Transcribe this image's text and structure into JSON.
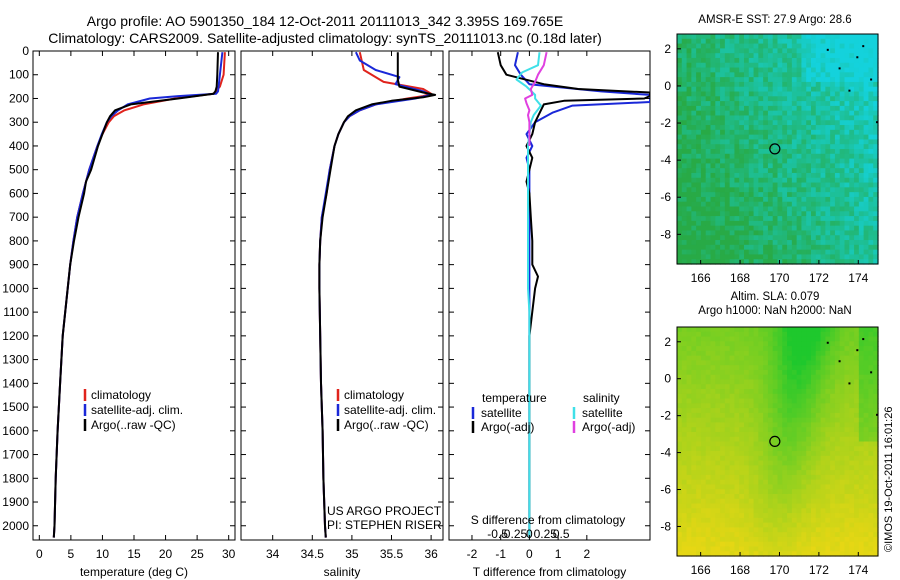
{
  "header": {
    "line1": "Argo profile: AO 5901350_184 12-Oct-2011 20111013_342 3.395S 169.765E",
    "line2": "Climatology: CARS2009. Satellite-adjusted climatology: synTS_20111013.nc (0.18d later)"
  },
  "colors": {
    "climatology": "#e0231c",
    "satellite": "#1a28d8",
    "argo": "#000000",
    "sal_satellite": "#3fe0e8",
    "sal_argo": "#e040e0"
  },
  "chart_data": [
    {
      "type": "line",
      "panel": "temperature",
      "xlabel": "temperature (deg C)",
      "ylabel": "",
      "xlim": [
        -1,
        31
      ],
      "ylim": [
        2060,
        0
      ],
      "xticks": [
        0,
        5,
        10,
        15,
        20,
        25,
        30
      ],
      "yticks": [
        0,
        100,
        200,
        300,
        400,
        500,
        600,
        700,
        800,
        900,
        1000,
        1100,
        1200,
        1300,
        1400,
        1500,
        1600,
        1700,
        1800,
        1900,
        2000
      ],
      "legend": [
        "climatology",
        "satellite-adj. clim.",
        "Argo(..raw -QC)"
      ],
      "series": [
        {
          "name": "climatology",
          "color": "#e0231c",
          "depth": [
            5,
            100,
            150,
            180,
            200,
            225,
            250,
            275,
            300,
            350,
            400,
            500,
            600,
            700,
            800,
            900,
            1000,
            1200,
            1400,
            1600,
            1800,
            2000,
            2050
          ],
          "values": [
            29.4,
            29.2,
            28.6,
            27.6,
            21.5,
            16.5,
            13.5,
            11.8,
            11.0,
            10.0,
            9.2,
            7.9,
            6.9,
            6.0,
            5.4,
            4.9,
            4.5,
            3.7,
            3.3,
            2.9,
            2.6,
            2.4,
            2.3
          ]
        },
        {
          "name": "satellite-adj. clim.",
          "color": "#1a28d8",
          "depth": [
            5,
            100,
            150,
            170,
            180,
            190,
            200,
            225,
            250,
            275,
            300,
            350,
            400,
            500,
            600,
            700,
            800,
            900,
            1000,
            1200,
            1400,
            1600,
            1800,
            2000,
            2050
          ],
          "values": [
            29.0,
            28.6,
            28.4,
            28.3,
            28.0,
            22.0,
            17.5,
            14.0,
            12.5,
            11.4,
            10.7,
            9.9,
            9.2,
            7.9,
            6.9,
            6.0,
            5.4,
            4.9,
            4.5,
            3.7,
            3.3,
            2.9,
            2.6,
            2.4,
            2.3
          ]
        },
        {
          "name": "Argo(..raw -QC)",
          "color": "#000000",
          "depth": [
            5,
            100,
            150,
            170,
            180,
            200,
            225,
            250,
            275,
            300,
            350,
            400,
            500,
            550,
            600,
            700,
            800,
            900,
            1000,
            1200,
            1400,
            1600,
            1800,
            2000,
            2050
          ],
          "values": [
            28.3,
            28.2,
            28.1,
            27.9,
            27.6,
            22.0,
            14.5,
            12.0,
            11.2,
            10.7,
            10.0,
            9.3,
            8.2,
            7.4,
            7.1,
            6.2,
            5.5,
            4.9,
            4.5,
            3.7,
            3.3,
            2.9,
            2.6,
            2.4,
            2.3
          ]
        }
      ]
    },
    {
      "type": "line",
      "panel": "salinity",
      "xlabel": "salinity",
      "ylabel": "",
      "xlim": [
        33.6,
        36.15
      ],
      "ylim": [
        2060,
        0
      ],
      "xticks": [
        34,
        34.5,
        35,
        35.5,
        36
      ],
      "legend": [
        "climatology",
        "satellite-adj. clim.",
        "Argo(..raw -QC)"
      ],
      "annotations": [
        "US ARGO PROJECT",
        "PI: STEPHEN RISER"
      ],
      "series": [
        {
          "name": "climatology",
          "color": "#e0231c",
          "depth": [
            5,
            80,
            130,
            160,
            180,
            190,
            200,
            225,
            250,
            275,
            300,
            350,
            400,
            500,
            600,
            700,
            800,
            900,
            1000,
            1200,
            1400,
            1600,
            1800,
            2000,
            2050
          ],
          "values": [
            35.1,
            35.15,
            35.4,
            35.9,
            36.0,
            35.9,
            35.7,
            35.3,
            35.1,
            34.97,
            34.9,
            34.83,
            34.78,
            34.72,
            34.68,
            34.62,
            34.6,
            34.59,
            34.59,
            34.6,
            34.61,
            34.63,
            34.64,
            34.66,
            34.67
          ]
        },
        {
          "name": "satellite-adj. clim.",
          "color": "#1a28d8",
          "depth": [
            5,
            40,
            80,
            110,
            140,
            170,
            185,
            200,
            225,
            250,
            275,
            300,
            350,
            400,
            500,
            600,
            700,
            800,
            900,
            1000,
            1200,
            1400,
            1600,
            1800,
            2000,
            2050
          ],
          "values": [
            35.05,
            35.1,
            35.3,
            35.6,
            35.55,
            35.9,
            36.0,
            35.8,
            35.3,
            35.1,
            34.97,
            34.9,
            34.83,
            34.78,
            34.72,
            34.67,
            34.62,
            34.6,
            34.59,
            34.59,
            34.6,
            34.61,
            34.63,
            34.64,
            34.66,
            34.67
          ]
        },
        {
          "name": "Argo(..raw -QC)",
          "color": "#000000",
          "depth": [
            5,
            60,
            120,
            150,
            175,
            185,
            195,
            210,
            225,
            250,
            275,
            300,
            350,
            400,
            500,
            600,
            700,
            800,
            900,
            1000,
            1200,
            1400,
            1600,
            1800,
            2000,
            2050
          ],
          "values": [
            35.58,
            35.58,
            35.58,
            35.6,
            35.9,
            36.05,
            35.9,
            35.5,
            35.25,
            35.05,
            34.95,
            34.9,
            34.83,
            34.78,
            34.73,
            34.68,
            34.63,
            34.6,
            34.59,
            34.59,
            34.6,
            34.61,
            34.63,
            34.64,
            34.66,
            34.67
          ]
        }
      ]
    },
    {
      "type": "line",
      "panel": "difference",
      "xlabel": "T difference from climatology",
      "x2label": "S difference from climatology",
      "xlim": [
        -2.8,
        4.2
      ],
      "ylim": [
        2060,
        0
      ],
      "xticks": [
        -2,
        -1,
        0,
        1,
        2
      ],
      "x2ticks_labels": [
        "-0.5",
        "-0.25",
        "0",
        "0.25",
        "0.5"
      ],
      "x2ticks": [
        -0.6,
        -0.3,
        0,
        0.3,
        0.6
      ],
      "legend_headers": [
        "temperature",
        "salinity"
      ],
      "legend": [
        "satellite",
        "Argo(-adj)",
        "satellite",
        "Argo(-adj)"
      ],
      "series": [
        {
          "name": "temperature satellite",
          "color": "#1a28d8",
          "depth": [
            5,
            60,
            100,
            140,
            170,
            185,
            200,
            215,
            230,
            260,
            300,
            350,
            400,
            450,
            500,
            600,
            700,
            800,
            900,
            1000,
            1200,
            1400,
            1600,
            1800,
            2000,
            2050
          ],
          "values": [
            -0.4,
            -0.5,
            -0.3,
            0.0,
            2.5,
            4.2,
            4.2,
            4.2,
            1.5,
            0.8,
            0.2,
            -0.1,
            0.1,
            -0.1,
            0.0,
            0.0,
            0.0,
            0.0,
            0.0,
            0.0,
            0.0,
            0.0,
            0.0,
            0.0,
            0.0,
            0.0
          ]
        },
        {
          "name": "temperature Argo(-adj)",
          "color": "#000000",
          "depth": [
            5,
            60,
            100,
            140,
            160,
            175,
            190,
            200,
            210,
            225,
            250,
            300,
            350,
            400,
            450,
            500,
            550,
            600,
            700,
            800,
            900,
            950,
            1000,
            1200,
            1600,
            2000,
            2050
          ],
          "values": [
            -1.1,
            -1.0,
            -0.8,
            0.5,
            1.7,
            4.2,
            4.2,
            4.0,
            1.2,
            0.5,
            0.4,
            0.2,
            0.1,
            -0.1,
            0.1,
            0.0,
            -0.1,
            0.0,
            0.05,
            0.1,
            0.1,
            0.3,
            0.2,
            0.0,
            0.0,
            0.0,
            0.0
          ]
        },
        {
          "name": "salinity satellite",
          "color": "#3fe0e8",
          "depth": [
            5,
            60,
            90,
            120,
            150,
            185,
            200,
            230,
            270,
            300,
            350,
            400,
            500,
            600,
            700,
            800,
            900,
            1000,
            1100,
            1200,
            1400,
            1600,
            1800,
            2000,
            2050
          ],
          "values": [
            0.35,
            0.3,
            -0.25,
            -0.45,
            -0.1,
            0.2,
            0.2,
            0.4,
            0.15,
            0.05,
            0.0,
            -0.05,
            -0.05,
            -0.05,
            -0.05,
            -0.05,
            -0.05,
            -0.05,
            0.0,
            0.0,
            0.0,
            0.0,
            0.0,
            0.0,
            0.0
          ]
        },
        {
          "name": "salinity Argo(-adj)",
          "color": "#e040e0",
          "depth": [
            5,
            60,
            100,
            130,
            160,
            185,
            200,
            220,
            250,
            270,
            300,
            330,
            360,
            400
          ],
          "values": [
            0.6,
            0.5,
            0.3,
            0.2,
            0.05,
            0.1,
            -0.15,
            -0.1,
            0.0,
            -0.05,
            0.0,
            0.0,
            0.0,
            0.0
          ]
        }
      ]
    },
    {
      "type": "heatmap",
      "panel": "sst_map",
      "title": "AMSR-E SST: 27.9 Argo: 28.6",
      "xlim": [
        164.8,
        175
      ],
      "ylim": [
        -9.6,
        2.8
      ],
      "xticks": [
        166,
        168,
        170,
        172,
        174
      ],
      "yticks": [
        2,
        0,
        -2,
        -4,
        -6,
        -8
      ],
      "marker": {
        "lon": 169.765,
        "lat": -3.395
      }
    },
    {
      "type": "heatmap",
      "panel": "sla_map",
      "title": "Altim. SLA: 0.079",
      "subtitle": "Argo h1000: NaN h2000: NaN",
      "xlim": [
        164.8,
        175
      ],
      "ylim": [
        -9.6,
        2.8
      ],
      "xticks": [
        166,
        168,
        170,
        172,
        174
      ],
      "yticks": [
        2,
        0,
        -2,
        -4,
        -6,
        -8
      ],
      "marker": {
        "lon": 169.765,
        "lat": -3.395
      }
    }
  ],
  "footer": {
    "stamp": "©IMOS 19-Oct-2011 16:01:26"
  }
}
